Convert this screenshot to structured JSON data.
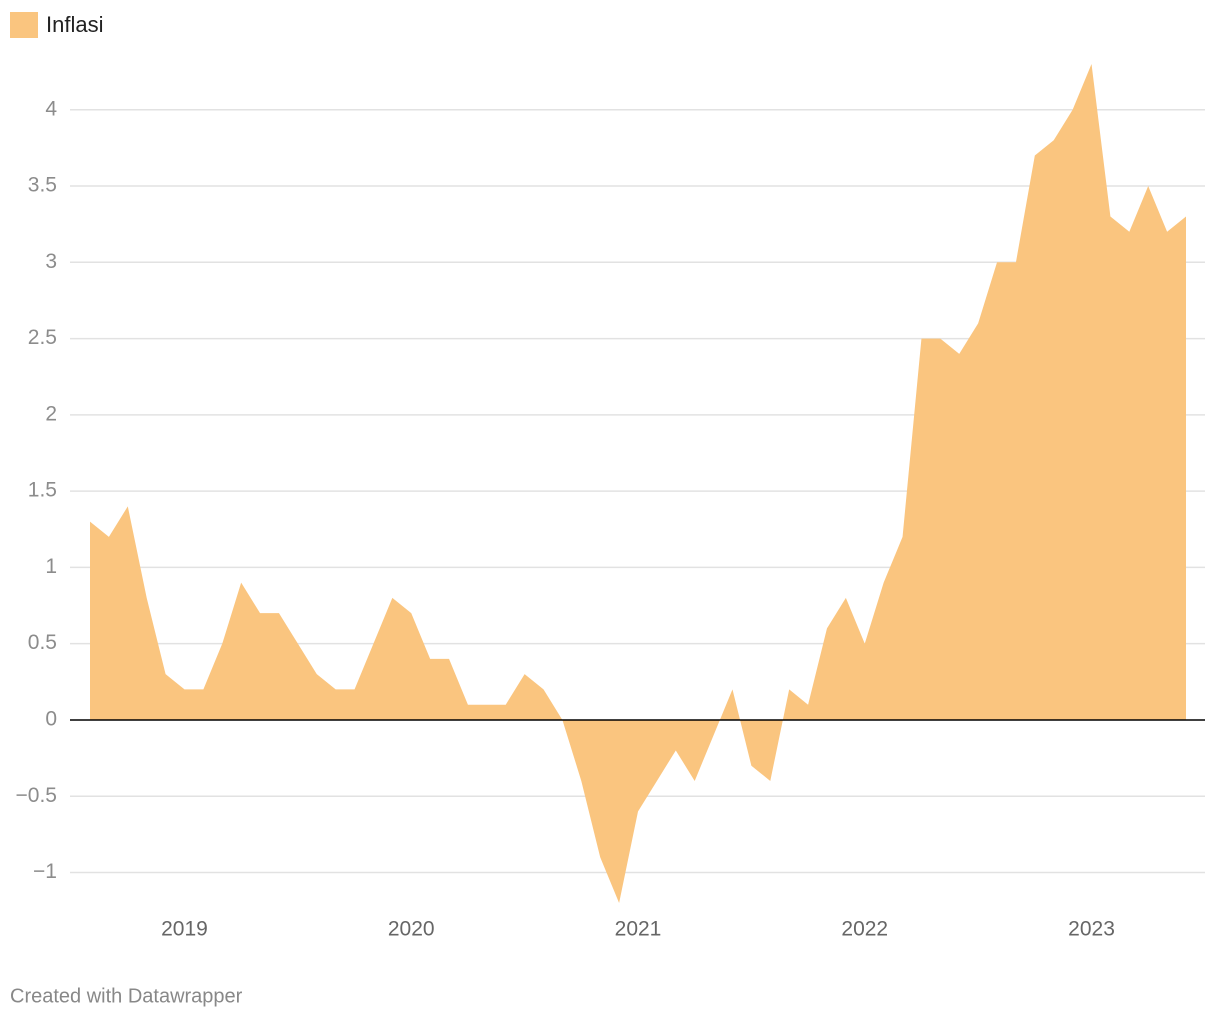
{
  "chart_data": {
    "type": "area",
    "legend_label": "Inflasi",
    "source": "Created with Datawrapper",
    "color": "#fac57f",
    "categories": [
      null,
      null,
      null,
      null,
      null,
      "2019",
      null,
      null,
      null,
      null,
      null,
      null,
      null,
      null,
      null,
      null,
      null,
      "2020",
      null,
      null,
      null,
      null,
      null,
      null,
      null,
      null,
      null,
      null,
      null,
      "2021",
      null,
      null,
      null,
      null,
      null,
      null,
      null,
      null,
      null,
      null,
      null,
      "2022",
      null,
      null,
      null,
      null,
      null,
      null,
      null,
      null,
      null,
      null,
      null,
      "2023",
      null,
      null,
      null,
      null,
      null
    ],
    "values": [
      1.3,
      1.2,
      1.4,
      0.8,
      0.3,
      0.2,
      0.2,
      0.5,
      0.9,
      0.7,
      0.7,
      0.5,
      0.3,
      0.2,
      0.2,
      0.5,
      0.8,
      0.7,
      0.4,
      0.4,
      0.1,
      0.1,
      0.1,
      0.3,
      0.2,
      0.0,
      -0.4,
      -0.9,
      -1.2,
      -0.6,
      -0.4,
      -0.2,
      -0.4,
      -0.1,
      0.2,
      -0.3,
      -0.4,
      0.2,
      0.1,
      0.6,
      0.8,
      0.5,
      0.9,
      1.2,
      2.5,
      2.5,
      2.4,
      2.6,
      3.0,
      3.0,
      3.7,
      3.8,
      4.0,
      4.3,
      3.3,
      3.2,
      3.5,
      3.2,
      3.3
    ],
    "ylim": [
      -1.2,
      4.3
    ],
    "yticks": [
      {
        "value": -1,
        "label": "−1"
      },
      {
        "value": -0.5,
        "label": "−0.5"
      },
      0,
      0.5,
      1,
      1.5,
      2,
      2.5,
      3,
      3.5,
      4
    ],
    "grid": true
  }
}
